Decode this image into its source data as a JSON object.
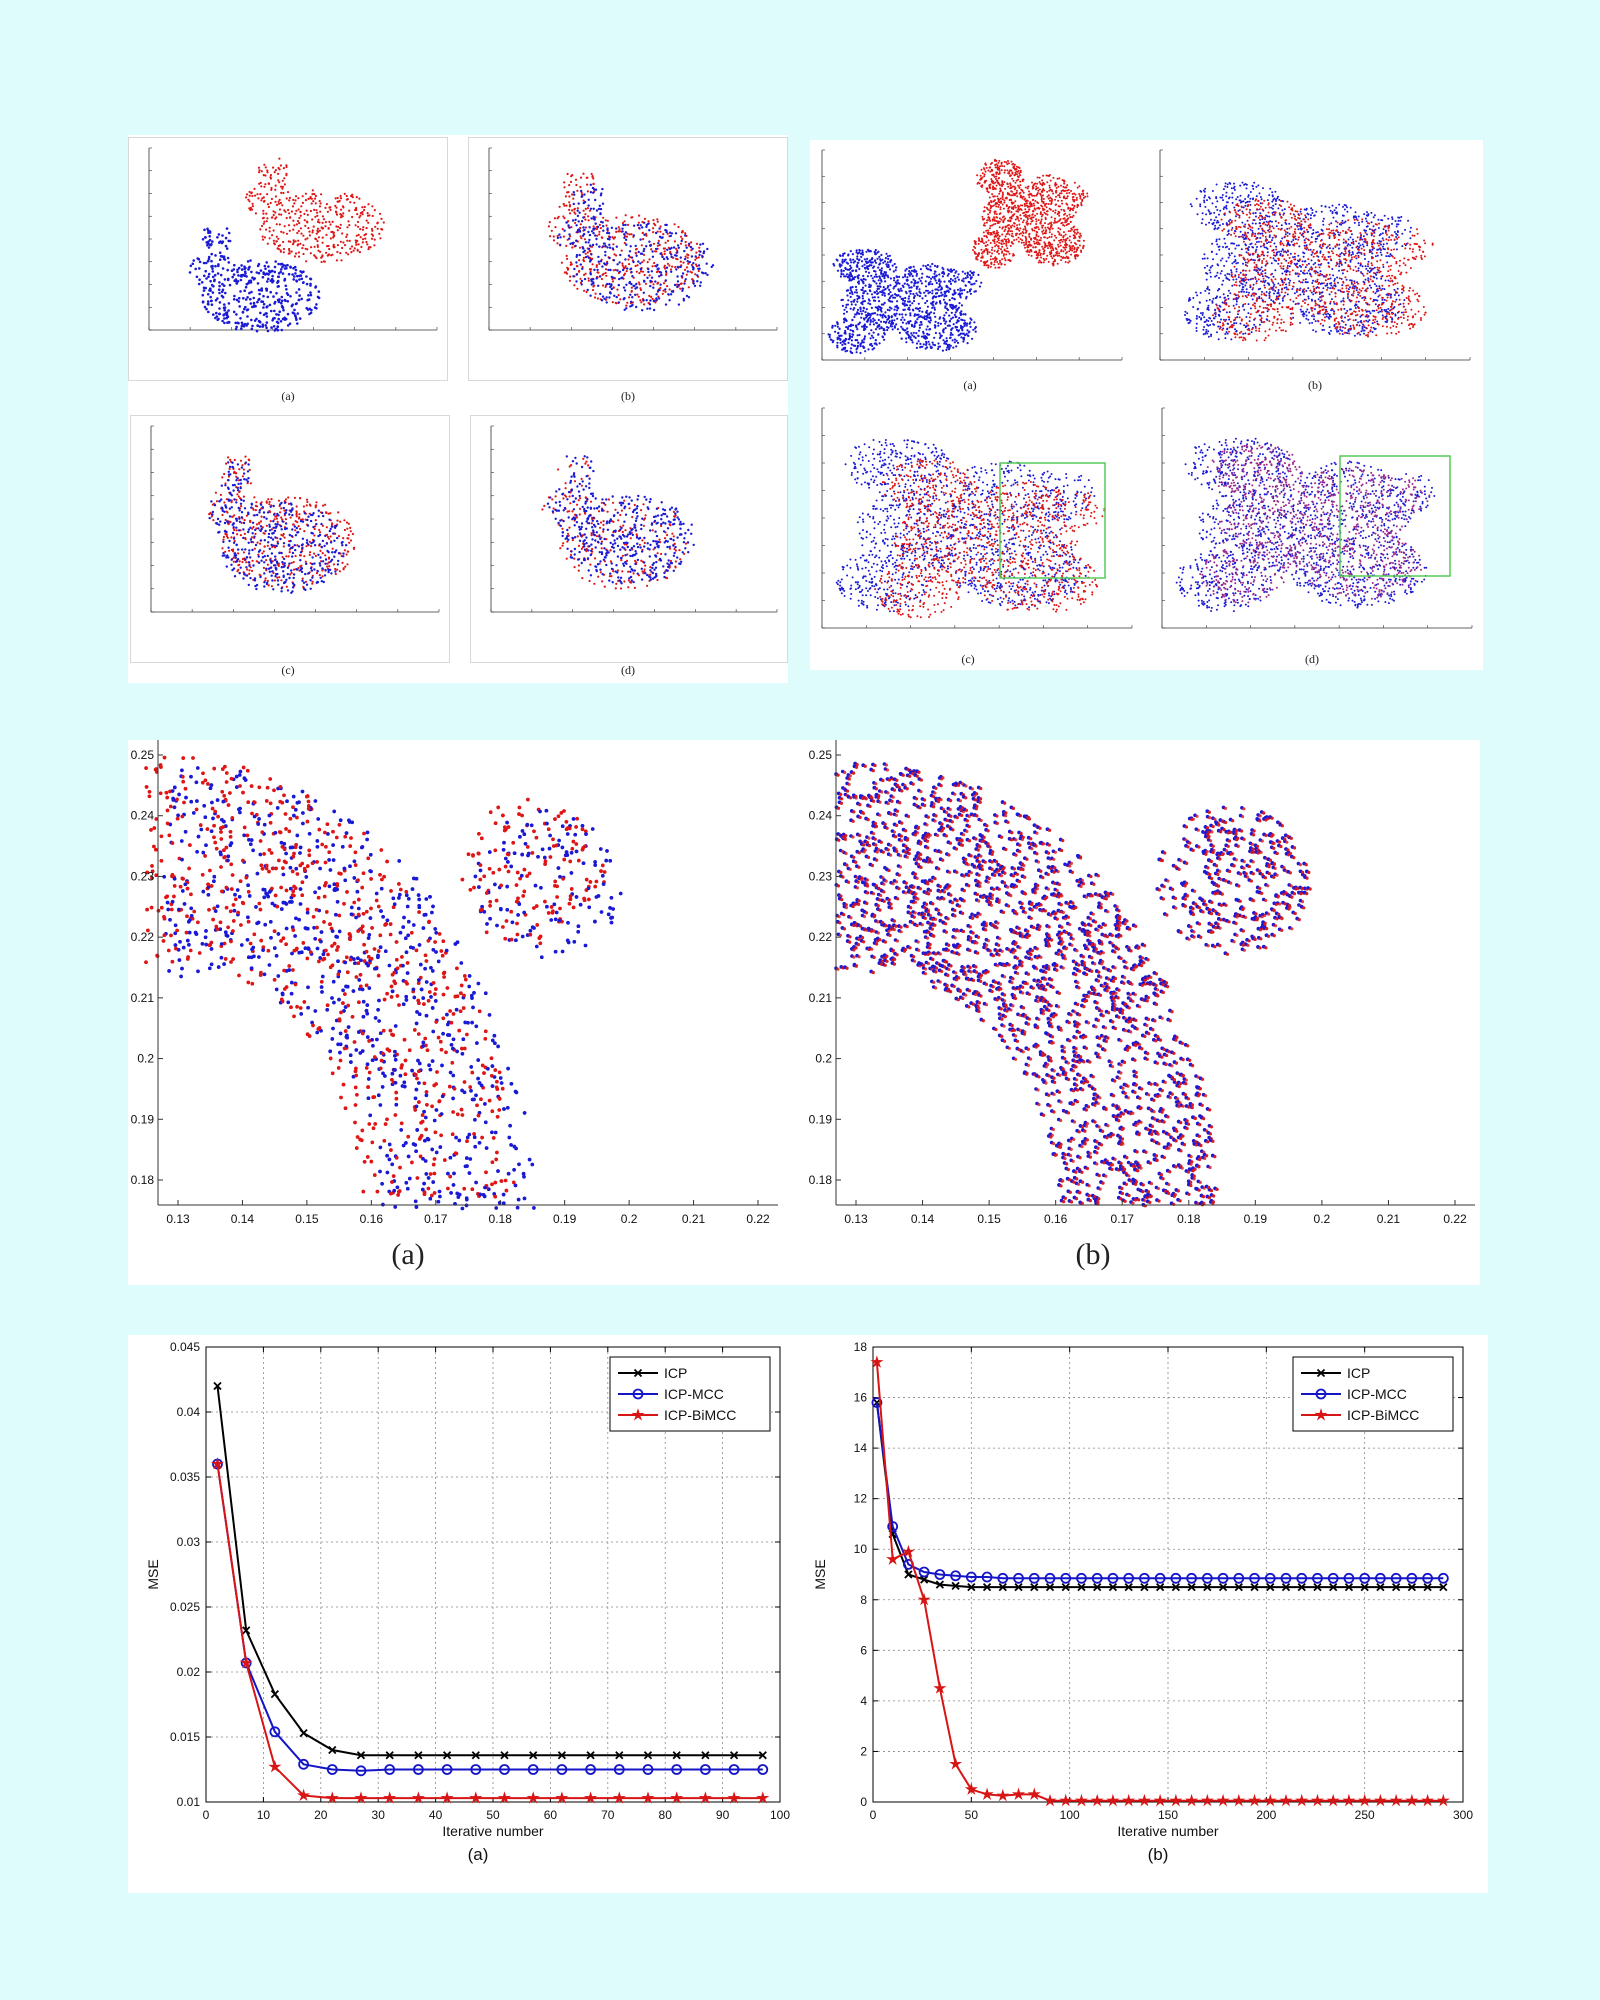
{
  "bunny_captions": [
    "(a)",
    "(b)",
    "(c)",
    "(d)"
  ],
  "dragon_captions": [
    "(a)",
    "(b)",
    "(c)",
    "(d)"
  ],
  "zoom_captions": [
    "(a)",
    "(b)"
  ],
  "zoom_a_axes": {
    "xticks": [
      "0.13",
      "0.14",
      "0.15",
      "0.16",
      "0.17",
      "0.18",
      "0.19",
      "0.2",
      "0.21",
      "0.22"
    ],
    "yticks": [
      "0.25",
      "0.24",
      "0.23",
      "0.22",
      "0.21",
      "0.2",
      "0.19",
      "0.18"
    ]
  },
  "zoom_b_axes": {
    "xticks": [
      "0.13",
      "0.14",
      "0.15",
      "0.16",
      "0.17",
      "0.18",
      "0.19",
      "0.2",
      "0.21",
      "0.22"
    ],
    "yticks": [
      "0.25",
      "0.24",
      "0.23",
      "0.22",
      "0.21",
      "0.2",
      "0.19",
      "0.18"
    ]
  },
  "colors": {
    "source": "#1a1ad6",
    "target": "#e01515",
    "box": "#55cc55",
    "icp": "#000000",
    "mcc": "#1515c8",
    "bimcc": "#d81515"
  },
  "plot_captions": [
    "(a)",
    "(b)"
  ],
  "chart_data": [
    {
      "type": "line",
      "xlabel": "Iterative number",
      "ylabel": "MSE",
      "xlim": [
        0,
        100
      ],
      "ylim": [
        0.01,
        0.045
      ],
      "xticks": [
        "0",
        "10",
        "20",
        "30",
        "40",
        "50",
        "60",
        "70",
        "80",
        "90",
        "100"
      ],
      "yticks": [
        "0.01",
        "0.015",
        "0.02",
        "0.025",
        "0.03",
        "0.035",
        "0.04",
        "0.045"
      ],
      "grid": true,
      "legend_position": "top-right",
      "x": [
        2,
        7,
        12,
        17,
        22,
        27,
        32,
        37,
        42,
        47,
        52,
        57,
        62,
        67,
        72,
        77,
        82,
        87,
        92,
        97
      ],
      "series": [
        {
          "name": "ICP",
          "marker": "x",
          "values": [
            0.042,
            0.0232,
            0.0183,
            0.0153,
            0.014,
            0.0136,
            0.0136,
            0.0136,
            0.0136,
            0.0136,
            0.0136,
            0.0136,
            0.0136,
            0.0136,
            0.0136,
            0.0136,
            0.0136,
            0.0136,
            0.0136,
            0.0136
          ]
        },
        {
          "name": "ICP-MCC",
          "marker": "o",
          "values": [
            0.036,
            0.0207,
            0.0154,
            0.0129,
            0.0125,
            0.0124,
            0.0125,
            0.0125,
            0.0125,
            0.0125,
            0.0125,
            0.0125,
            0.0125,
            0.0125,
            0.0125,
            0.0125,
            0.0125,
            0.0125,
            0.0125,
            0.0125
          ]
        },
        {
          "name": "ICP-BiMCC",
          "marker": "*",
          "values": [
            0.036,
            0.0207,
            0.0127,
            0.0105,
            0.0103,
            0.0103,
            0.0103,
            0.0103,
            0.0103,
            0.0103,
            0.0103,
            0.0103,
            0.0103,
            0.0103,
            0.0103,
            0.0103,
            0.0103,
            0.0103,
            0.0103,
            0.0103
          ]
        }
      ]
    },
    {
      "type": "line",
      "xlabel": "Iterative number",
      "ylabel": "MSE",
      "xlim": [
        0,
        300
      ],
      "ylim": [
        0,
        18
      ],
      "xticks": [
        "0",
        "50",
        "100",
        "150",
        "200",
        "250",
        "300"
      ],
      "yticks": [
        "0",
        "2",
        "4",
        "6",
        "8",
        "10",
        "12",
        "14",
        "16",
        "18"
      ],
      "grid": true,
      "legend_position": "top-right",
      "x": [
        2,
        10,
        18,
        26,
        34,
        42,
        50,
        58,
        66,
        74,
        82,
        90,
        98,
        106,
        114,
        122,
        130,
        138,
        146,
        154,
        162,
        170,
        178,
        186,
        194,
        202,
        210,
        218,
        226,
        234,
        242,
        250,
        258,
        266,
        274,
        282,
        290
      ],
      "series": [
        {
          "name": "ICP",
          "marker": "x",
          "values": [
            15.8,
            10.6,
            9.0,
            8.8,
            8.6,
            8.55,
            8.5,
            8.5,
            8.5,
            8.5,
            8.5,
            8.5,
            8.5,
            8.5,
            8.5,
            8.5,
            8.5,
            8.5,
            8.5,
            8.5,
            8.5,
            8.5,
            8.5,
            8.5,
            8.5,
            8.5,
            8.5,
            8.5,
            8.5,
            8.5,
            8.5,
            8.5,
            8.5,
            8.5,
            8.5,
            8.5,
            8.5
          ]
        },
        {
          "name": "ICP-MCC",
          "marker": "o",
          "values": [
            15.8,
            10.9,
            9.4,
            9.1,
            9.0,
            8.95,
            8.9,
            8.9,
            8.85,
            8.85,
            8.85,
            8.85,
            8.85,
            8.85,
            8.85,
            8.85,
            8.85,
            8.85,
            8.85,
            8.85,
            8.85,
            8.85,
            8.85,
            8.85,
            8.85,
            8.85,
            8.85,
            8.85,
            8.85,
            8.85,
            8.85,
            8.85,
            8.85,
            8.85,
            8.85,
            8.85,
            8.85
          ]
        },
        {
          "name": "ICP-BiMCC",
          "marker": "*",
          "values": [
            17.4,
            9.6,
            9.9,
            8.0,
            4.5,
            1.5,
            0.5,
            0.3,
            0.25,
            0.3,
            0.3,
            0.05,
            0.05,
            0.05,
            0.05,
            0.05,
            0.05,
            0.05,
            0.05,
            0.05,
            0.05,
            0.05,
            0.05,
            0.05,
            0.05,
            0.05,
            0.05,
            0.05,
            0.05,
            0.05,
            0.05,
            0.05,
            0.05,
            0.05,
            0.05,
            0.05,
            0.05
          ]
        }
      ]
    }
  ]
}
